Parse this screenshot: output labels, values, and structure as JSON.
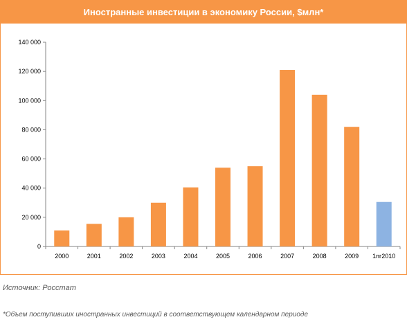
{
  "header": {
    "title": "Иностранные инвестиции в экономику России, $млн*"
  },
  "footer": {
    "source": "Источник: Росстат",
    "footnote": "*Объем поступивших иностранных инвестиций в соответствующем календарном периоде"
  },
  "colors": {
    "accent": "#f79646",
    "bar": "#f79646",
    "highlight_bar": "#8db3e2"
  },
  "chart_data": {
    "type": "bar",
    "title": "Иностранные инвестиции в экономику России, $млн*",
    "xlabel": "",
    "ylabel": "",
    "categories": [
      "2000",
      "2001",
      "2002",
      "2003",
      "2004",
      "2005",
      "2006",
      "2007",
      "2008",
      "2009",
      "1пг2010"
    ],
    "values": [
      11000,
      15500,
      20000,
      30000,
      40500,
      54000,
      55000,
      121000,
      104000,
      82000,
      30500
    ],
    "highlight_index": 10,
    "ylim": [
      0,
      140000
    ],
    "yticks": [
      0,
      20000,
      40000,
      60000,
      80000,
      100000,
      120000,
      140000
    ],
    "ytick_labels": [
      "0",
      "20 000",
      "40 000",
      "60 000",
      "80 000",
      "100 000",
      "120 000",
      "140 000"
    ],
    "grid": false,
    "legend": "none"
  }
}
